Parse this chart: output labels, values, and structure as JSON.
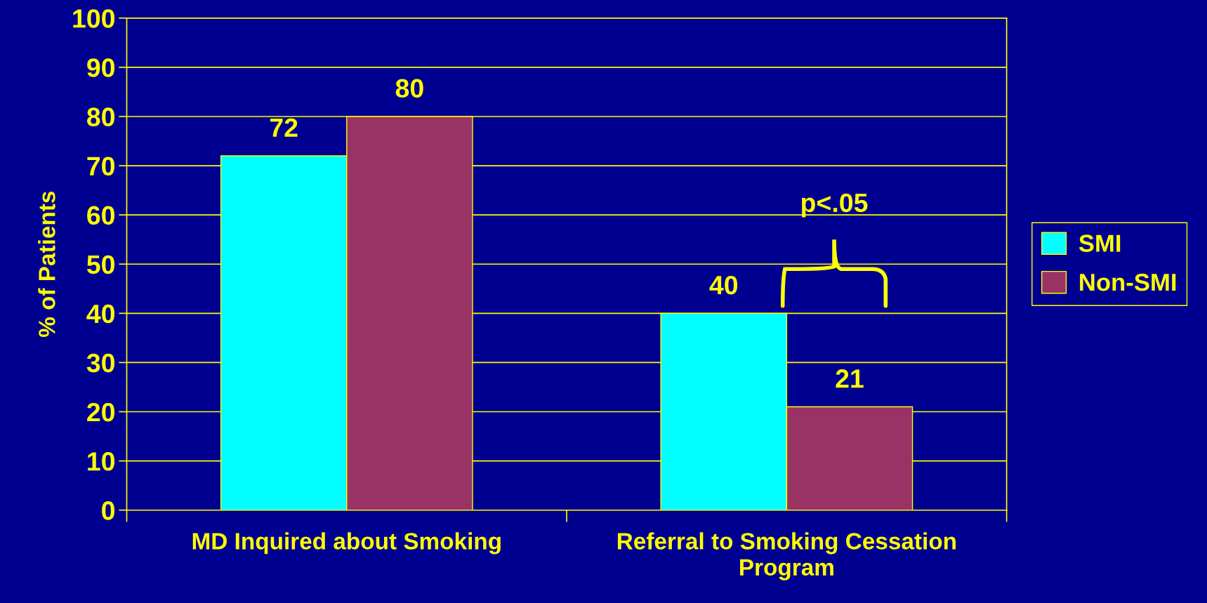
{
  "chart_data": {
    "type": "bar",
    "ylabel": "% of Patients",
    "categories": [
      "MD Inquired about Smoking",
      "Referral to Smoking Cessation Program"
    ],
    "series": [
      {
        "name": "SMI",
        "color": "#00ffff",
        "values": [
          72,
          40
        ]
      },
      {
        "name": "Non-SMI",
        "color": "#993366",
        "values": [
          80,
          21
        ]
      }
    ],
    "ylim": [
      0,
      100
    ],
    "yticks": [
      0,
      10,
      20,
      30,
      40,
      50,
      60,
      70,
      80,
      90,
      100
    ],
    "grid": "y",
    "legend": "right",
    "data_labels": true,
    "annotations": [
      "p<.05"
    ]
  }
}
